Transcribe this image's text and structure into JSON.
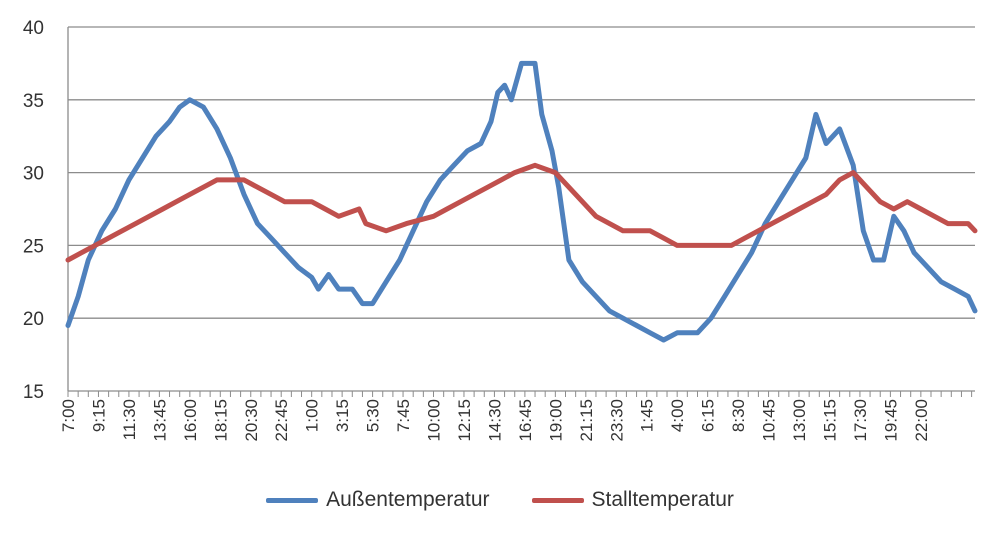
{
  "chart_data": {
    "type": "line",
    "title": "",
    "xlabel": "",
    "ylabel": "",
    "ylim": [
      15,
      40
    ],
    "y_ticks": [
      "15",
      "20",
      "25",
      "30",
      "35",
      "40"
    ],
    "grid": true,
    "legend_position": "bottom",
    "x_interval_minutes": 15,
    "x_tick_labels": [
      "7:00",
      "9:15",
      "11:30",
      "13:45",
      "16:00",
      "18:15",
      "20:30",
      "22:45",
      "1:00",
      "3:15",
      "5:30",
      "7:45",
      "10:00",
      "12:15",
      "14:30",
      "16:45",
      "19:00",
      "21:15",
      "23:30",
      "1:45",
      "4:00",
      "6:15",
      "8:30",
      "10:45",
      "13:00",
      "15:15",
      "17:30",
      "19:45",
      "22:00"
    ],
    "series": [
      {
        "name": "Außentemperatur",
        "color": "#4f81bd",
        "anchors": [
          [
            0,
            19.5
          ],
          [
            3,
            21.5
          ],
          [
            6,
            24
          ],
          [
            10,
            26
          ],
          [
            14,
            27.5
          ],
          [
            18,
            29.5
          ],
          [
            22,
            31
          ],
          [
            26,
            32.5
          ],
          [
            30,
            33.5
          ],
          [
            33,
            34.5
          ],
          [
            36,
            35
          ],
          [
            40,
            34.5
          ],
          [
            44,
            33
          ],
          [
            48,
            31
          ],
          [
            52,
            28.5
          ],
          [
            56,
            26.5
          ],
          [
            60,
            25.5
          ],
          [
            64,
            24.5
          ],
          [
            68,
            23.5
          ],
          [
            72,
            22.8
          ],
          [
            74,
            22
          ],
          [
            77,
            23
          ],
          [
            80,
            22
          ],
          [
            84,
            22
          ],
          [
            87,
            21
          ],
          [
            90,
            21
          ],
          [
            94,
            22.5
          ],
          [
            98,
            24
          ],
          [
            102,
            26
          ],
          [
            106,
            28
          ],
          [
            110,
            29.5
          ],
          [
            114,
            30.5
          ],
          [
            118,
            31.5
          ],
          [
            122,
            32
          ],
          [
            125,
            33.5
          ],
          [
            127,
            35.5
          ],
          [
            129,
            36
          ],
          [
            131,
            35
          ],
          [
            134,
            37.5
          ],
          [
            138,
            37.5
          ],
          [
            140,
            34
          ],
          [
            143,
            31.5
          ],
          [
            145,
            29
          ],
          [
            148,
            24
          ],
          [
            152,
            22.5
          ],
          [
            156,
            21.5
          ],
          [
            160,
            20.5
          ],
          [
            164,
            20
          ],
          [
            168,
            19.5
          ],
          [
            172,
            19
          ],
          [
            176,
            18.5
          ],
          [
            180,
            19
          ],
          [
            186,
            19
          ],
          [
            190,
            20
          ],
          [
            194,
            21.5
          ],
          [
            198,
            23
          ],
          [
            202,
            24.5
          ],
          [
            206,
            26.5
          ],
          [
            210,
            28
          ],
          [
            214,
            29.5
          ],
          [
            218,
            31
          ],
          [
            221,
            34
          ],
          [
            224,
            32
          ],
          [
            228,
            33
          ],
          [
            232,
            30.5
          ],
          [
            235,
            26
          ],
          [
            238,
            24
          ],
          [
            241,
            24
          ],
          [
            244,
            27
          ],
          [
            247,
            26
          ],
          [
            250,
            24.5
          ],
          [
            254,
            23.5
          ],
          [
            258,
            22.5
          ],
          [
            262,
            22
          ],
          [
            266,
            21.5
          ],
          [
            268,
            20.5
          ]
        ]
      },
      {
        "name": "Stalltemperatur",
        "color": "#c0504d",
        "anchors": [
          [
            0,
            24
          ],
          [
            4,
            24.5
          ],
          [
            8,
            25
          ],
          [
            12,
            25.5
          ],
          [
            16,
            26
          ],
          [
            20,
            26.5
          ],
          [
            24,
            27
          ],
          [
            28,
            27.5
          ],
          [
            32,
            28
          ],
          [
            36,
            28.5
          ],
          [
            40,
            29
          ],
          [
            44,
            29.5
          ],
          [
            52,
            29.5
          ],
          [
            56,
            29
          ],
          [
            60,
            28.5
          ],
          [
            64,
            28
          ],
          [
            72,
            28
          ],
          [
            76,
            27.5
          ],
          [
            80,
            27
          ],
          [
            86,
            27.5
          ],
          [
            88,
            26.5
          ],
          [
            94,
            26
          ],
          [
            100,
            26.5
          ],
          [
            108,
            27
          ],
          [
            112,
            27.5
          ],
          [
            116,
            28
          ],
          [
            120,
            28.5
          ],
          [
            124,
            29
          ],
          [
            128,
            29.5
          ],
          [
            132,
            30
          ],
          [
            138,
            30.5
          ],
          [
            144,
            30
          ],
          [
            148,
            29
          ],
          [
            152,
            28
          ],
          [
            156,
            27
          ],
          [
            160,
            26.5
          ],
          [
            164,
            26
          ],
          [
            172,
            26
          ],
          [
            176,
            25.5
          ],
          [
            180,
            25
          ],
          [
            196,
            25
          ],
          [
            200,
            25.5
          ],
          [
            204,
            26
          ],
          [
            208,
            26.5
          ],
          [
            212,
            27
          ],
          [
            216,
            27.5
          ],
          [
            220,
            28
          ],
          [
            224,
            28.5
          ],
          [
            228,
            29.5
          ],
          [
            232,
            30
          ],
          [
            236,
            29
          ],
          [
            240,
            28
          ],
          [
            244,
            27.5
          ],
          [
            248,
            28
          ],
          [
            252,
            27.5
          ],
          [
            256,
            27
          ],
          [
            260,
            26.5
          ],
          [
            266,
            26.5
          ],
          [
            268,
            26
          ]
        ]
      }
    ]
  }
}
